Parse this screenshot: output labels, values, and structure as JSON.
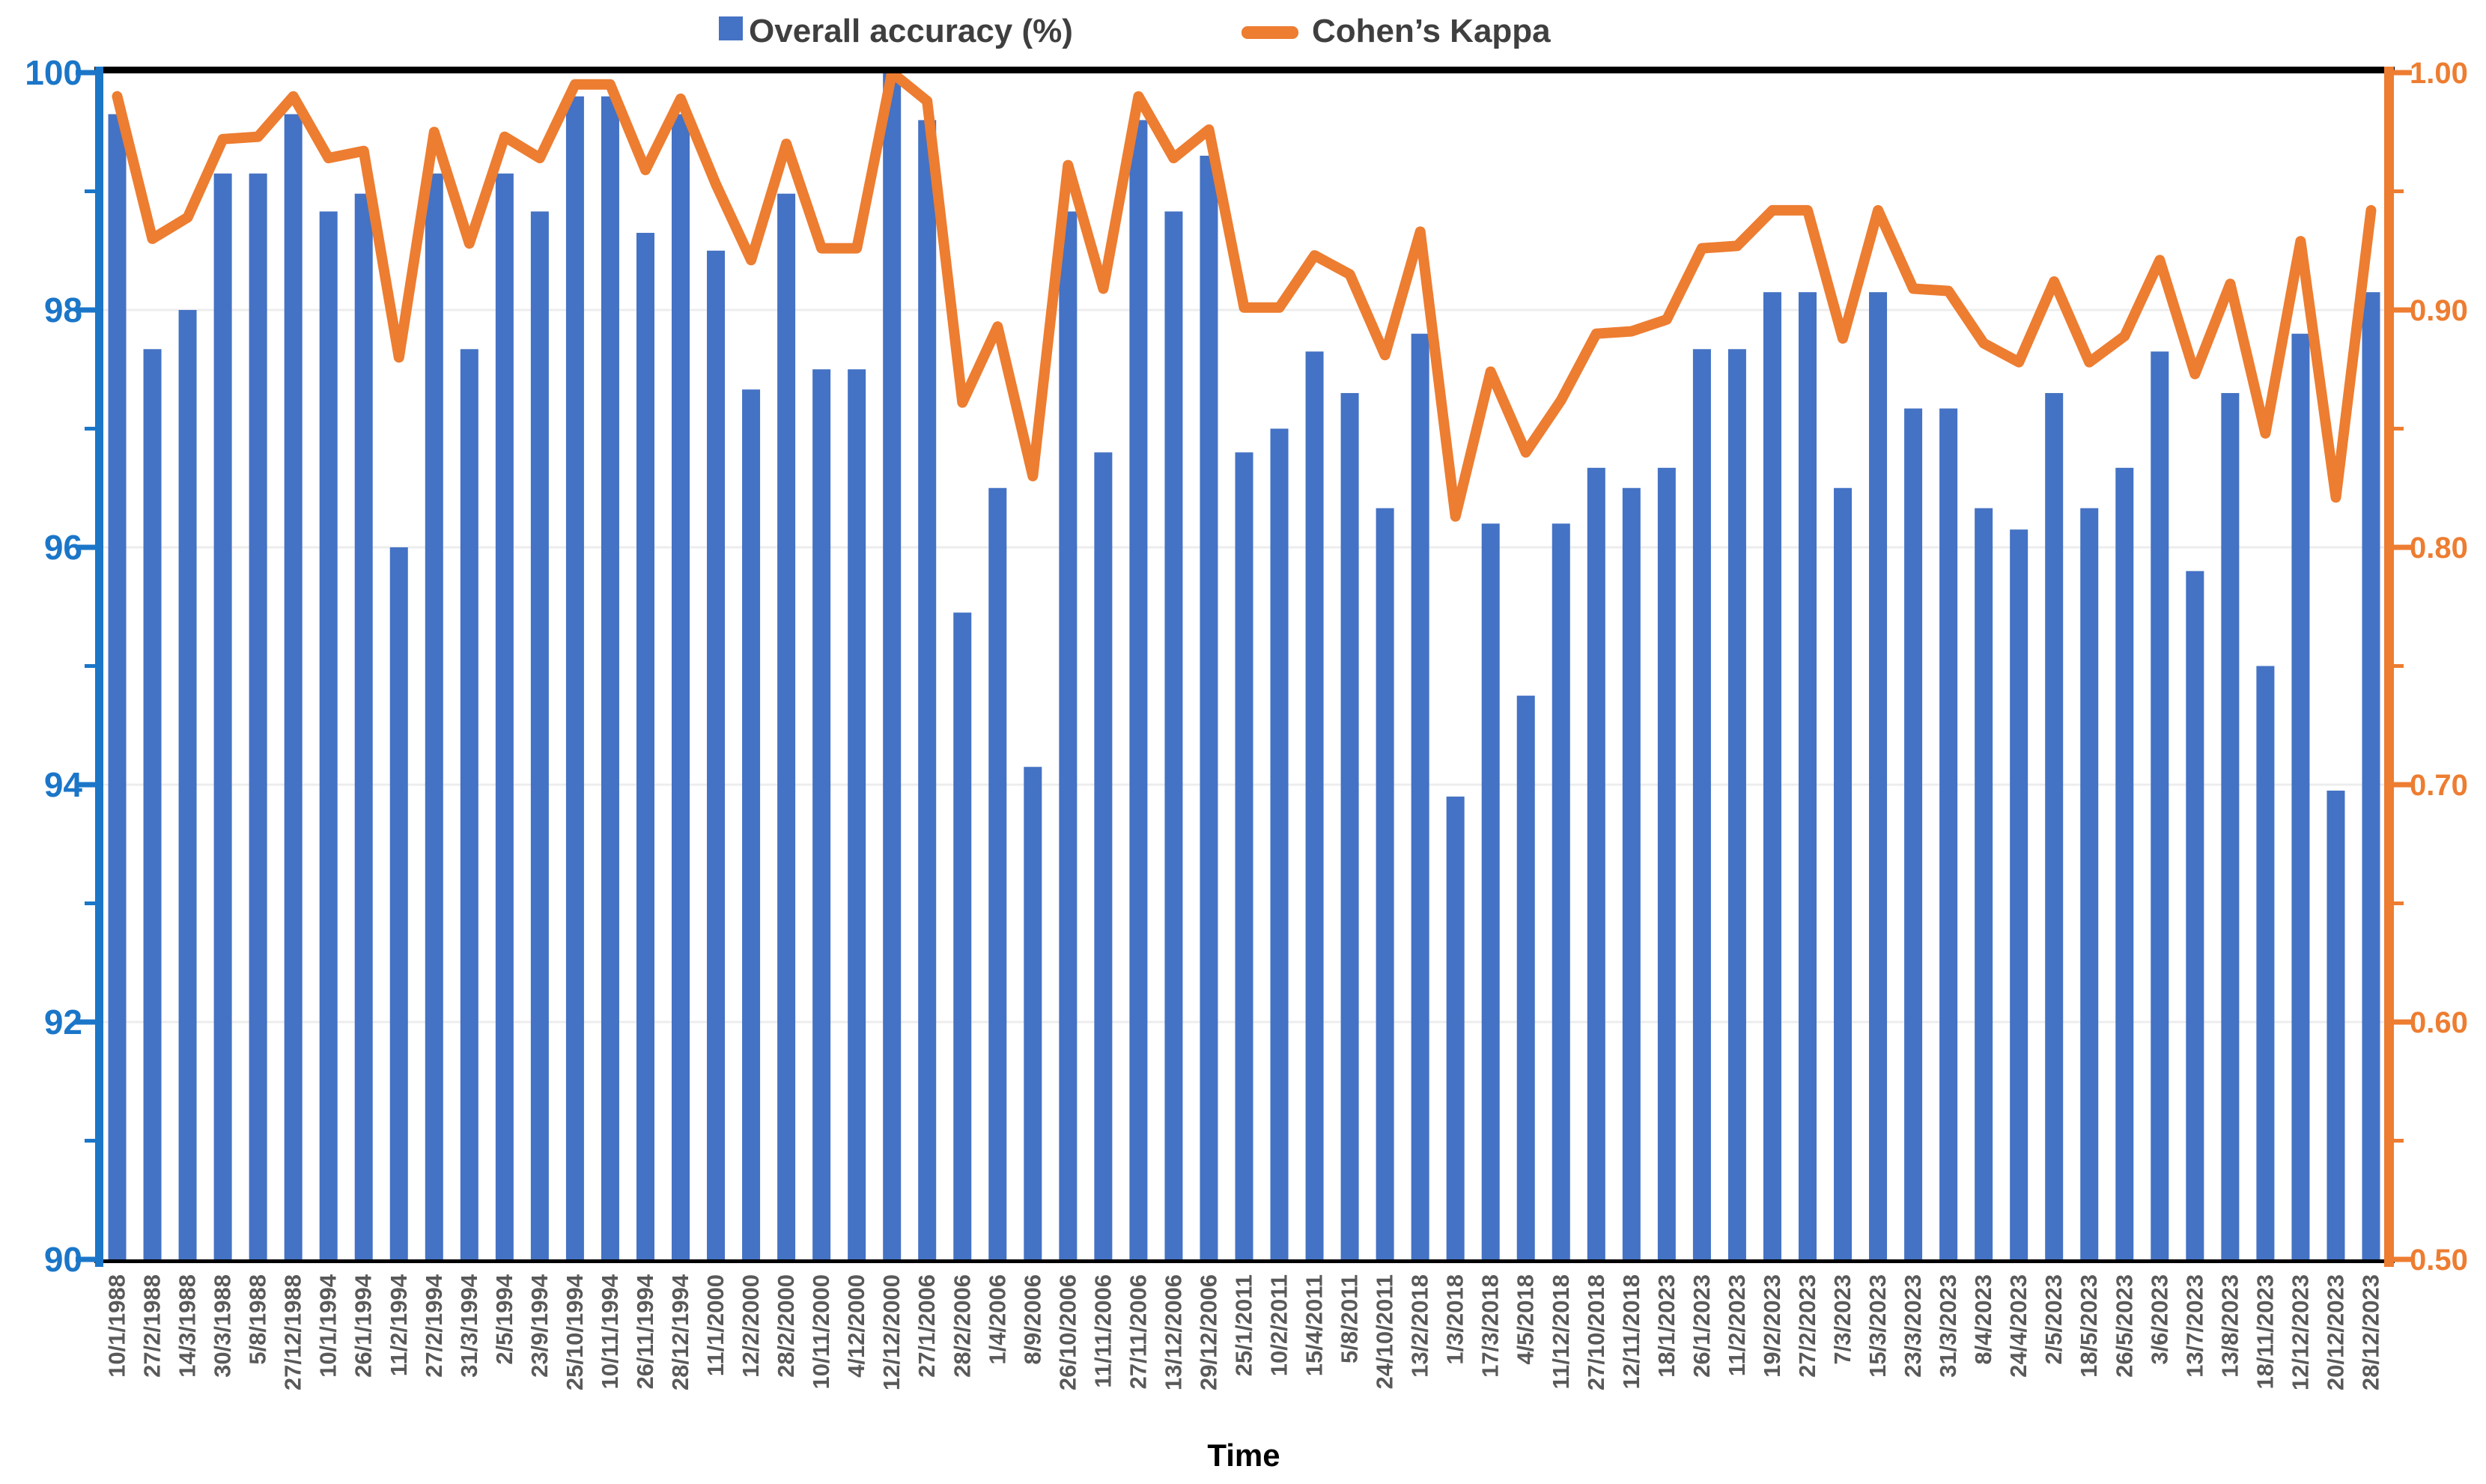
{
  "legend": {
    "accuracy_label": "Overall accuracy (%)",
    "kappa_label": "Cohen’s Kappa"
  },
  "axes": {
    "left_tick_labels": [
      "100",
      "98",
      "96",
      "94",
      "92",
      "90"
    ],
    "right_tick_labels": [
      "1.00",
      "0.90",
      "0.80",
      "0.70",
      "0.60",
      "0.50"
    ]
  },
  "colors": {
    "bar": "#4472C4",
    "line": "#ED7D31",
    "left_axis": "#1B76C8",
    "right_axis": "#ED7D31",
    "grid": "#EDEDED",
    "x_label": "#595959",
    "legend_text": "#3F3F3F",
    "border": "#000000"
  },
  "chart_data": {
    "type": "bar",
    "subtype": "bar+line combo, dual axis",
    "title": "",
    "xlabel": "Time",
    "legend_position": "top-center",
    "grid": "horizontal gridlines at 92, 94, 96, 98",
    "categories": [
      "10/1/1988",
      "27/2/1988",
      "14/3/1988",
      "30/3/1988",
      "5/8/1988",
      "27/12/1988",
      "10/1/1994",
      "26/1/1994",
      "11/2/1994",
      "27/2/1994",
      "31/3/1994",
      "2/5/1994",
      "23/9/1994",
      "25/10/1994",
      "10/11/1994",
      "26/11/1994",
      "28/12/1994",
      "11/1/2000",
      "12/2/2000",
      "28/2/2000",
      "10/11/2000",
      "4/12/2000",
      "12/12/2000",
      "27/1/2006",
      "28/2/2006",
      "1/4/2006",
      "8/9/2006",
      "26/10/2006",
      "11/11/2006",
      "27/11/2006",
      "13/12/2006",
      "29/12/2006",
      "25/1/2011",
      "10/2/2011",
      "15/4/2011",
      "5/8/2011",
      "24/10/2011",
      "13/2/2018",
      "1/3/2018",
      "17/3/2018",
      "4/5/2018",
      "11/12/2018",
      "27/10/2018",
      "12/11/2018",
      "18/1/2023",
      "26/1/2023",
      "11/2/2023",
      "19/2/2023",
      "27/2/2023",
      "7/3/2023",
      "15/3/2023",
      "23/3/2023",
      "31/3/2023",
      "8/4/2023",
      "24/4/2023",
      "2/5/2023",
      "18/5/2023",
      "26/5/2023",
      "3/6/2023",
      "13/7/2023",
      "13/8/2023",
      "18/11/2023",
      "12/12/2023",
      "20/12/2023",
      "28/12/2023"
    ],
    "series": [
      {
        "name": "Overall accuracy (%)",
        "type": "bar",
        "axis": "left",
        "values": [
          99.65,
          97.67,
          98.0,
          99.15,
          99.15,
          99.65,
          98.83,
          98.98,
          96.0,
          99.15,
          97.67,
          99.15,
          98.83,
          99.8,
          99.8,
          98.65,
          99.65,
          98.5,
          97.33,
          98.98,
          97.5,
          97.5,
          100.0,
          99.6,
          95.45,
          96.5,
          94.15,
          98.83,
          96.8,
          99.6,
          98.83,
          99.3,
          96.8,
          97.0,
          97.65,
          97.3,
          96.33,
          97.8,
          93.9,
          96.2,
          94.75,
          96.2,
          96.67,
          96.5,
          96.67,
          97.67,
          97.67,
          98.15,
          98.15,
          96.5,
          98.15,
          97.17,
          97.17,
          96.33,
          96.15,
          97.3,
          96.33,
          96.67,
          97.65,
          95.8,
          97.3,
          95.0,
          97.8,
          93.95,
          98.15
        ]
      },
      {
        "name": "Cohen’s Kappa",
        "type": "line",
        "axis": "right",
        "values": [
          0.99,
          0.93,
          0.939,
          0.972,
          0.973,
          0.99,
          0.964,
          0.967,
          0.88,
          0.975,
          0.928,
          0.973,
          0.964,
          0.995,
          0.995,
          0.959,
          0.989,
          0.953,
          0.921,
          0.97,
          0.926,
          0.926,
          1.0,
          0.988,
          0.861,
          0.893,
          0.83,
          0.961,
          0.909,
          0.99,
          0.964,
          0.976,
          0.901,
          0.901,
          0.923,
          0.915,
          0.881,
          0.933,
          0.813,
          0.874,
          0.84,
          0.862,
          0.89,
          0.891,
          0.896,
          0.926,
          0.927,
          0.942,
          0.942,
          0.888,
          0.942,
          0.909,
          0.908,
          0.886,
          0.878,
          0.912,
          0.878,
          0.889,
          0.921,
          0.873,
          0.911,
          0.848,
          0.929,
          0.821,
          0.942
        ]
      }
    ],
    "left_axis": {
      "min": 90,
      "max": 100,
      "major_step": 2,
      "minor_step": 1
    },
    "right_axis": {
      "min": 0.5,
      "max": 1.0,
      "major_step": 0.1,
      "minor_step": 0.05
    }
  }
}
